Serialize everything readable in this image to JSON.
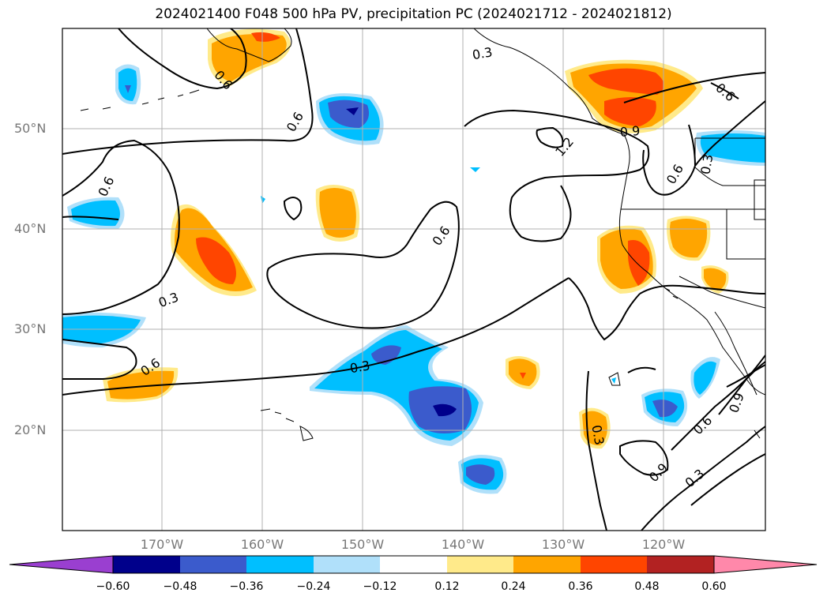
{
  "title": "2024021400 F048 500 hPa PV, precipitation PC (2024021712 - 2024021812)",
  "axes": {
    "lat_labels": [
      "50°N",
      "40°N",
      "30°N",
      "20°N"
    ],
    "lon_labels": [
      "170°W",
      "160°W",
      "150°W",
      "140°W",
      "130°W",
      "120°W"
    ]
  },
  "contour_labels": [
    "0.3",
    "0.6",
    "0.6",
    "0.6",
    "0.6",
    "0.3",
    "0.6",
    "0.6",
    "0.3",
    "1.2",
    "0.9",
    "0.6",
    "0.3",
    "0.9",
    "0.6",
    "0.3",
    "0.9",
    "0.3",
    "0.6"
  ],
  "colorbar": {
    "ticks": [
      "−0.60",
      "−0.48",
      "−0.36",
      "−0.24",
      "−0.12",
      "0.12",
      "0.24",
      "0.36",
      "0.48",
      "0.60"
    ],
    "colors": [
      "#9a3fd0",
      "#00008b",
      "#3b5bcc",
      "#00bfff",
      "#b0e0fa",
      "#ffffff",
      "#ffea8a",
      "#ffa500",
      "#ff4500",
      "#b22222",
      "#ff88aa"
    ]
  }
}
